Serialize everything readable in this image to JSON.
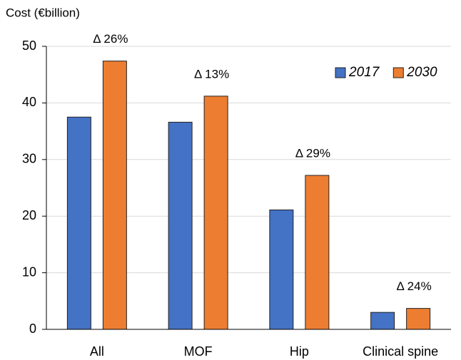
{
  "chart_data": {
    "type": "bar",
    "y_label": "Cost (€billion)",
    "categories": [
      "All",
      "MOF",
      "Hip",
      "Clinical spine"
    ],
    "series": [
      {
        "name": "2017",
        "color": "#4472c4",
        "values": [
          37.5,
          36.6,
          21.1,
          3.0
        ]
      },
      {
        "name": "2030",
        "color": "#ed7d31",
        "values": [
          47.4,
          41.2,
          27.2,
          3.7
        ]
      }
    ],
    "annotations": [
      "Δ 26%",
      "Δ 13%",
      "Δ 29%",
      "Δ 24%"
    ],
    "ylim": [
      0,
      50
    ],
    "yticks": [
      0,
      10,
      20,
      30,
      40,
      50
    ],
    "grid": true,
    "legend": "top-right"
  }
}
